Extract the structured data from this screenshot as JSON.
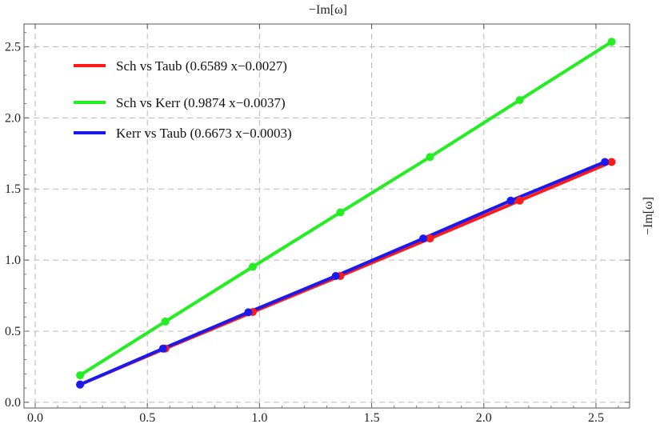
{
  "chart_data": {
    "type": "line",
    "top_label": "−Im[ω]",
    "right_label": "−Im[ω]",
    "xlim": [
      -0.05,
      2.65
    ],
    "ylim": [
      -0.04,
      2.66
    ],
    "x_ticks": [
      "0.0",
      "0.5",
      "1.0",
      "1.5",
      "2.0",
      "2.5"
    ],
    "y_ticks": [
      "0.0",
      "0.5",
      "1.0",
      "1.5",
      "2.0",
      "2.5"
    ],
    "grid": true,
    "legend_position": "top-left",
    "series": [
      {
        "name": "Sch vs Taub (0.6589 x−0.0027)",
        "color": "#ff1a1a",
        "x": [
          0.2,
          0.58,
          0.97,
          1.36,
          1.76,
          2.16,
          2.57
        ],
        "y": [
          0.125,
          0.378,
          0.635,
          0.888,
          1.152,
          1.418,
          1.69
        ]
      },
      {
        "name": "Sch vs Kerr (0.9874 x−0.0037)",
        "color": "#22ee22",
        "x": [
          0.2,
          0.58,
          0.97,
          1.36,
          1.76,
          2.16,
          2.57
        ],
        "y": [
          0.19,
          0.568,
          0.953,
          1.335,
          1.725,
          2.125,
          2.535
        ]
      },
      {
        "name": "Kerr vs Taub (0.6673 x−0.0003)",
        "color": "#1a1aee",
        "x": [
          0.2,
          0.57,
          0.95,
          1.34,
          1.73,
          2.12,
          2.54
        ],
        "y": [
          0.125,
          0.378,
          0.633,
          0.888,
          1.152,
          1.418,
          1.69
        ]
      }
    ]
  }
}
